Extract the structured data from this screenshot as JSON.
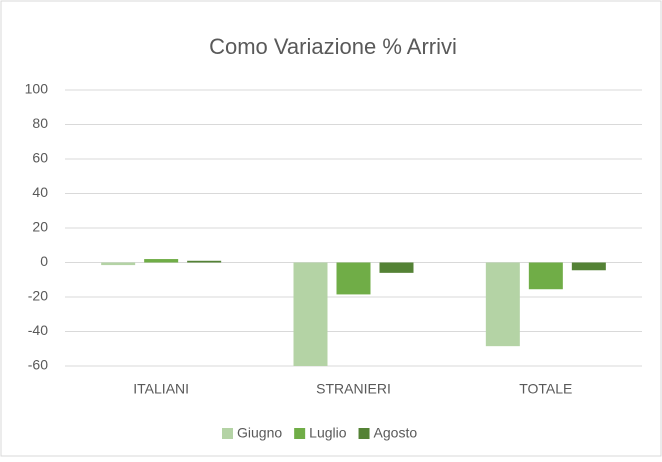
{
  "chart_data": {
    "type": "bar",
    "title": "Como Variazione % Arrivi",
    "categories": [
      "ITALIANI",
      "STRANIERI",
      "TOTALE"
    ],
    "series": [
      {
        "name": "Giugno",
        "color": "#b4d3a5",
        "values": [
          -1.5,
          -60,
          -48.5
        ]
      },
      {
        "name": "Luglio",
        "color": "#70ad47",
        "values": [
          2,
          -18.5,
          -15.5
        ]
      },
      {
        "name": "Agosto",
        "color": "#548235",
        "values": [
          1,
          -6,
          -4.5
        ]
      }
    ],
    "ylim": [
      -60,
      100
    ],
    "yticks": [
      -60,
      -40,
      -20,
      0,
      20,
      40,
      60,
      80,
      100
    ],
    "grid": true,
    "legend": "bottom"
  }
}
